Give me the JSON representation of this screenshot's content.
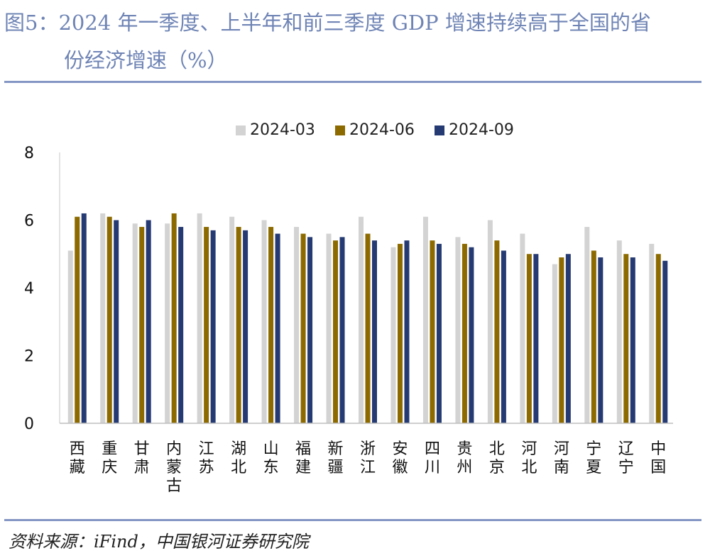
{
  "title": {
    "line1": "图5：2024 年一季度、上半年和前三季度 GDP 增速持续高于全国的省",
    "line2": "份经济增速（%）"
  },
  "source": "资料来源：iFind，中国银河证券研究院",
  "chart_data": {
    "type": "bar",
    "title": "图5：2024 年一季度、上半年和前三季度 GDP 增速持续高于全国的省份经济增速（%）",
    "xlabel": "",
    "ylabel": "",
    "ylim": [
      0,
      8
    ],
    "yticks": [
      0,
      2,
      4,
      6,
      8
    ],
    "grid": false,
    "legend_position": "top",
    "categories": [
      "西藏",
      "重庆",
      "甘肃",
      "内蒙古",
      "江苏",
      "湖北",
      "山东",
      "福建",
      "新疆",
      "浙江",
      "安徽",
      "四川",
      "贵州",
      "北京",
      "河北",
      "河南",
      "宁夏",
      "辽宁",
      "中国"
    ],
    "series": [
      {
        "name": "2024-03",
        "color": "#d3d3d3",
        "values": [
          5.1,
          6.2,
          5.9,
          5.9,
          6.2,
          6.1,
          6.0,
          5.8,
          5.6,
          6.1,
          5.2,
          6.1,
          5.5,
          6.0,
          5.6,
          4.7,
          5.8,
          5.4,
          5.3
        ]
      },
      {
        "name": "2024-06",
        "color": "#8c6a00",
        "values": [
          6.1,
          6.1,
          5.8,
          6.2,
          5.8,
          5.8,
          5.8,
          5.6,
          5.4,
          5.6,
          5.3,
          5.4,
          5.3,
          5.4,
          5.0,
          4.9,
          5.1,
          5.0,
          5.0
        ]
      },
      {
        "name": "2024-09",
        "color": "#253a72",
        "values": [
          6.2,
          6.0,
          6.0,
          5.8,
          5.7,
          5.7,
          5.6,
          5.5,
          5.5,
          5.4,
          5.4,
          5.3,
          5.2,
          5.1,
          5.0,
          5.0,
          4.9,
          4.9,
          4.8
        ]
      }
    ]
  }
}
